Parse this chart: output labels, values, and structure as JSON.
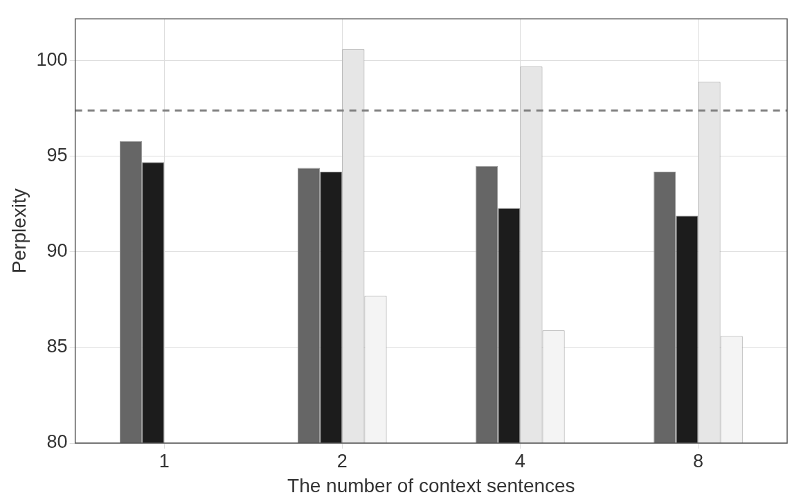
{
  "chart_data": {
    "type": "bar",
    "xlabel": "The number of context sentences",
    "ylabel": "Perplexity",
    "categories": [
      "1",
      "2",
      "4",
      "8"
    ],
    "series": [
      {
        "color": "#666666",
        "values": [
          95.8,
          94.4,
          94.5,
          94.2
        ]
      },
      {
        "color": "#1c1c1c",
        "values": [
          94.7,
          94.2,
          92.3,
          91.9
        ]
      },
      {
        "color": "#e6e6e6",
        "values": [
          null,
          100.6,
          99.7,
          98.9
        ]
      },
      {
        "color": "#f4f4f4",
        "values": [
          null,
          87.7,
          85.9,
          85.6
        ]
      }
    ],
    "ylim": [
      80,
      102.2
    ],
    "yticks": [
      80,
      85,
      90,
      95,
      100
    ],
    "grid": true,
    "legend": false,
    "ref_lines": [
      {
        "axis": "y",
        "value": 97.4,
        "color": "#808080",
        "line_style": "dashed"
      }
    ]
  }
}
